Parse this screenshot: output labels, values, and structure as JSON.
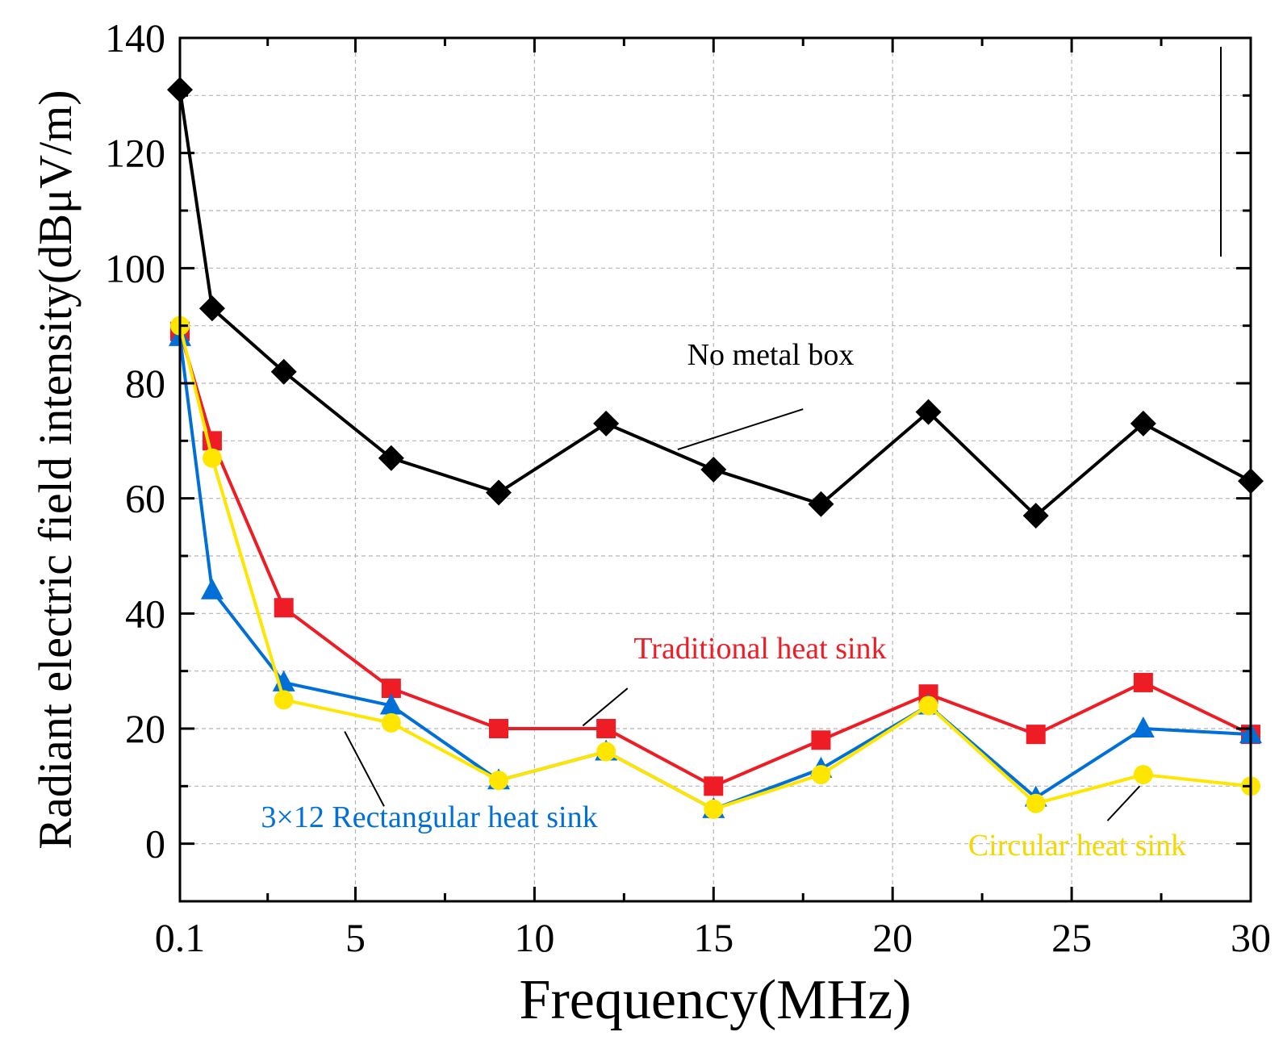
{
  "chart_data": {
    "type": "line",
    "title": "",
    "xlabel": "Frequency(MHz)",
    "ylabel": "Radiant electric field intensity(dBμV/m)",
    "xlim": [
      0.1,
      30
    ],
    "ylim": [
      -10,
      140
    ],
    "grid": true,
    "x_tick_labels": [
      "0.1",
      "5",
      "10",
      "15",
      "20",
      "25",
      "30"
    ],
    "y_tick_labels": [
      "0",
      "20",
      "40",
      "60",
      "80",
      "100",
      "120",
      "140"
    ],
    "x": [
      0.1,
      1,
      3,
      6,
      9,
      12,
      15,
      18,
      21,
      24,
      27,
      30
    ],
    "series": [
      {
        "name": "No metal box",
        "color": "#000000",
        "marker": "diamond",
        "values": [
          131,
          93,
          82,
          67,
          61,
          73,
          65,
          59,
          75,
          57,
          73,
          63
        ]
      },
      {
        "name": "Traditional heat sink",
        "color": "#ee1c25",
        "marker": "square",
        "values": [
          89,
          70,
          41,
          27,
          20,
          20,
          10,
          18,
          26,
          19,
          28,
          19
        ]
      },
      {
        "name": "3×12 Rectangular heat sink",
        "color": "#0070d8",
        "marker": "triangle",
        "values": [
          88,
          44,
          28,
          24,
          11,
          16,
          6,
          13,
          24,
          8,
          20,
          19
        ]
      },
      {
        "name": "Circular heat sink",
        "color": "#ffe600",
        "marker": "circle",
        "values": [
          90,
          67,
          25,
          21,
          11,
          16,
          6,
          12,
          24,
          7,
          12,
          10
        ]
      }
    ],
    "annotations": [
      {
        "text": "No metal box",
        "series": 0
      },
      {
        "text": "Traditional heat sink",
        "series": 1
      },
      {
        "text": "3×12 Rectangular heat sink",
        "series": 2
      },
      {
        "text": "Circular heat sink",
        "series": 3
      }
    ]
  }
}
